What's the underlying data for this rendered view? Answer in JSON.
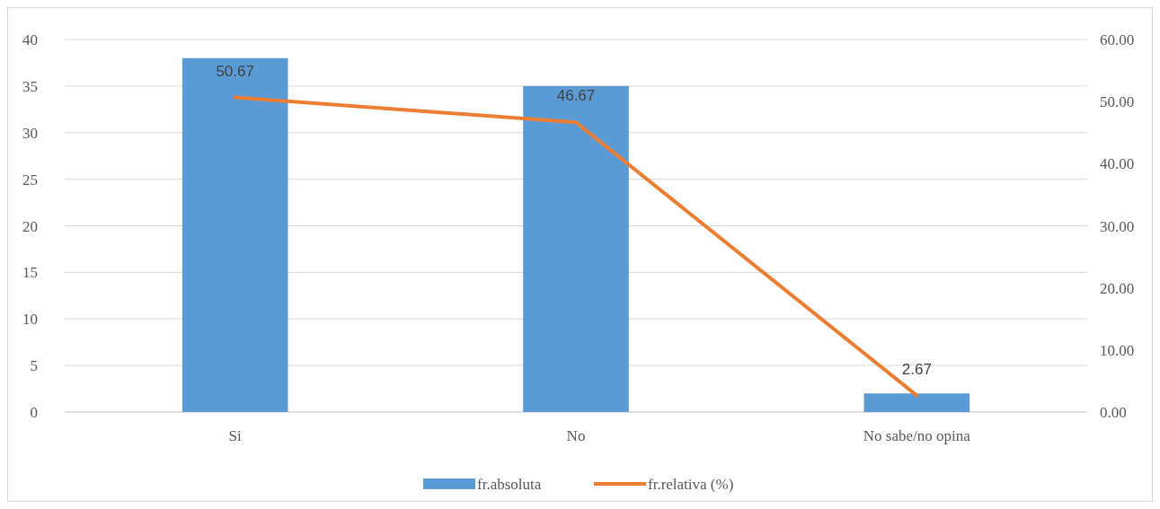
{
  "chart_data": {
    "type": "bar",
    "categories": [
      "Si",
      "No",
      "No sabe/no opina"
    ],
    "series": [
      {
        "name": "fr.absoluta",
        "color": "#5b9bd5",
        "values": [
          38,
          35,
          2
        ]
      },
      {
        "name": "fr.relativa (%)",
        "type": "line",
        "axis": "y2",
        "color": "#ed7d31",
        "values": [
          50.67,
          46.67,
          2.67
        ],
        "value_labels": [
          "50.67",
          "46.67",
          "2.67"
        ]
      }
    ],
    "ylim": [
      0,
      40
    ],
    "yticks": [
      0,
      5,
      10,
      15,
      20,
      25,
      30,
      35,
      40
    ],
    "y2lim": [
      0,
      60
    ],
    "y2ticks": [
      {
        "value": 0,
        "label": "0.00"
      },
      {
        "value": 10,
        "label": "10.00"
      },
      {
        "value": 20,
        "label": "20.00"
      },
      {
        "value": 30,
        "label": "30.00"
      },
      {
        "value": 40,
        "label": "40.00"
      },
      {
        "value": 50,
        "label": "50.00"
      },
      {
        "value": 60,
        "label": "60.00"
      }
    ],
    "grid": "y",
    "legend": "bottom",
    "marker": "none",
    "line_style": "solid"
  }
}
